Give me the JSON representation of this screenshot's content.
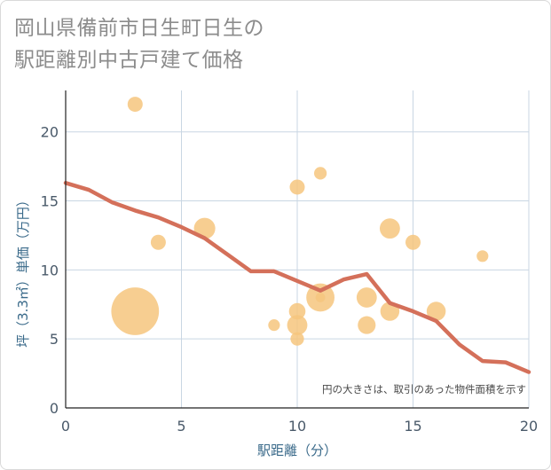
{
  "title_lines": [
    "岡山県備前市日生町日生の",
    "駅距離別中古戸建て価格"
  ],
  "chart_data": {
    "type": "scatter",
    "title": "岡山県備前市日生町日生の駅距離別中古戸建て価格",
    "xlabel": "駅距離（分）",
    "ylabel": "坪（3.3㎡）単価（万円）",
    "xlim": [
      0,
      20
    ],
    "ylim": [
      0,
      23
    ],
    "xticks": [
      0,
      5,
      10,
      15,
      20
    ],
    "yticks": [
      0,
      5,
      10,
      15,
      20
    ],
    "grid": true,
    "note": "円の大きさは、取引のあった物件面積を示す",
    "bubble_color": "#f6c57e",
    "line_color": "#d4705a",
    "bubbles": [
      {
        "x": 3,
        "y": 22,
        "size": 1
      },
      {
        "x": 3,
        "y": 7,
        "size": 10
      },
      {
        "x": 4,
        "y": 12,
        "size": 1
      },
      {
        "x": 6,
        "y": 13,
        "size": 2
      },
      {
        "x": 9,
        "y": 6,
        "size": 0.6
      },
      {
        "x": 10,
        "y": 16,
        "size": 1
      },
      {
        "x": 10,
        "y": 7,
        "size": 1.2
      },
      {
        "x": 10,
        "y": 6,
        "size": 1.8
      },
      {
        "x": 10,
        "y": 5,
        "size": 0.8
      },
      {
        "x": 11,
        "y": 17,
        "size": 0.7
      },
      {
        "x": 11,
        "y": 8,
        "size": 3.5
      },
      {
        "x": 11,
        "y": 8,
        "size": 0.4
      },
      {
        "x": 13,
        "y": 8,
        "size": 1.8
      },
      {
        "x": 13,
        "y": 6,
        "size": 1.4
      },
      {
        "x": 14,
        "y": 13,
        "size": 1.8
      },
      {
        "x": 14,
        "y": 7,
        "size": 1.6
      },
      {
        "x": 15,
        "y": 12,
        "size": 1
      },
      {
        "x": 16,
        "y": 7,
        "size": 1.6
      },
      {
        "x": 18,
        "y": 11,
        "size": 0.6
      }
    ],
    "trend": {
      "x": [
        0,
        1,
        2,
        3,
        4,
        5,
        6,
        7,
        8,
        9,
        10,
        11,
        12,
        13,
        14,
        15,
        16,
        17,
        18,
        19,
        20
      ],
      "y": [
        16.3,
        15.8,
        14.9,
        14.3,
        13.8,
        13.1,
        12.3,
        11.1,
        9.9,
        9.9,
        9.2,
        8.5,
        9.3,
        9.7,
        7.6,
        7.0,
        6.3,
        4.6,
        3.4,
        3.3,
        2.6
      ]
    }
  }
}
